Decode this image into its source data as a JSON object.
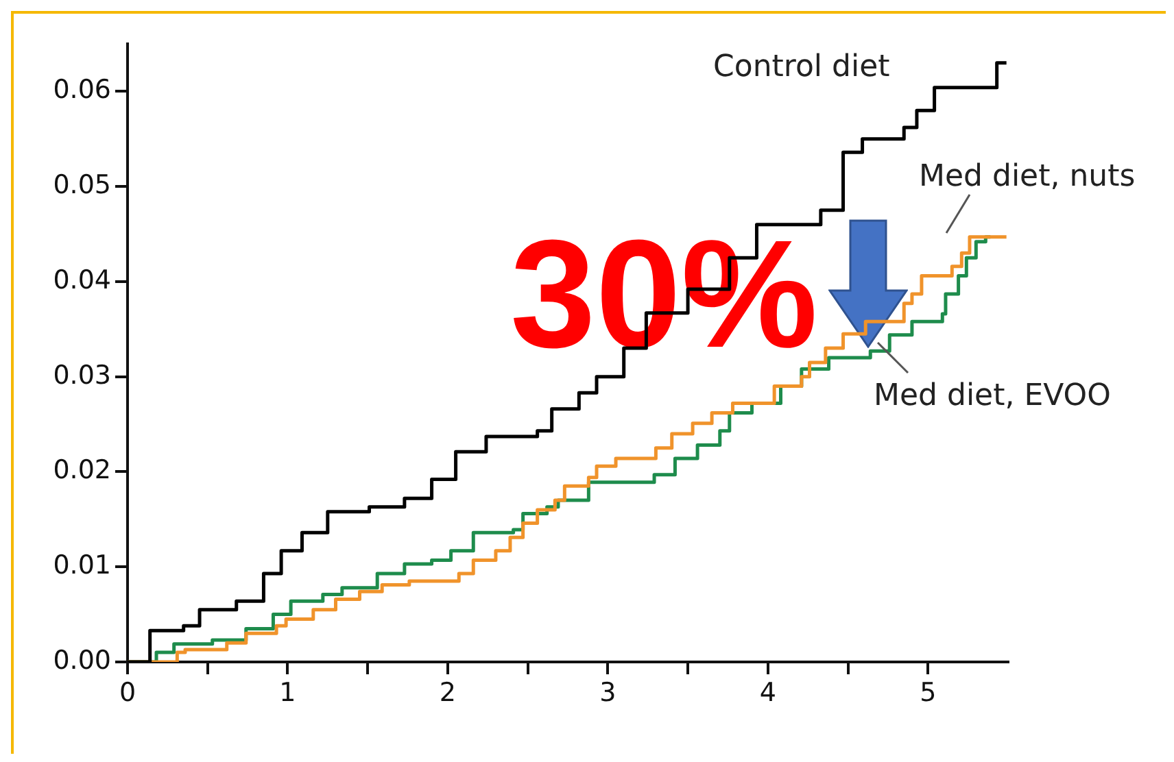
{
  "chart_data": {
    "type": "step",
    "annotations": [
      "30%"
    ],
    "xlim": [
      0,
      5.5
    ],
    "ylim": [
      0,
      0.065
    ],
    "xticks": [
      0,
      {
        "value": 0.5,
        "label": null
      },
      1,
      {
        "value": 1.5,
        "label": null
      },
      2,
      {
        "value": 2.5,
        "label": null
      },
      3,
      {
        "value": 3.5,
        "label": null
      },
      4,
      {
        "value": 4.5,
        "label": null
      },
      5
    ],
    "yticks": [
      {
        "value": 0,
        "label": "0.00"
      },
      0.01,
      0.02,
      0.03,
      0.04,
      0.05,
      0.06
    ],
    "grid": false,
    "legend": false,
    "series": [
      {
        "name": "Control diet",
        "color": "#000000",
        "x": [
          0,
          0.03,
          0.14,
          0.35,
          0.45,
          0.68,
          0.85,
          0.96,
          1.09,
          1.25,
          1.51,
          1.73,
          1.9,
          2.05,
          2.24,
          2.56,
          2.65,
          2.82,
          2.93,
          3.1,
          3.24,
          3.5,
          3.76,
          3.93,
          4.33,
          4.47,
          4.59,
          4.85,
          4.93,
          5.04,
          5.37,
          5.43,
          5.49
        ],
        "values": [
          0,
          0,
          0.0033,
          0.0038,
          0.0055,
          0.0064,
          0.0093,
          0.0117,
          0.0136,
          0.0158,
          0.0163,
          0.0172,
          0.0192,
          0.0221,
          0.0237,
          0.0243,
          0.0266,
          0.0283,
          0.03,
          0.033,
          0.0367,
          0.0392,
          0.0425,
          0.046,
          0.0475,
          0.0536,
          0.055,
          0.0562,
          0.058,
          0.0604,
          0.0604,
          0.063,
          0.063
        ]
      },
      {
        "name": "Med diet, nuts",
        "color": "#f0932b",
        "x": [
          0,
          0.31,
          0.36,
          0.62,
          0.74,
          0.93,
          0.99,
          1.16,
          1.3,
          1.45,
          1.59,
          1.76,
          2.07,
          2.16,
          2.3,
          2.39,
          2.47,
          2.56,
          2.67,
          2.73,
          2.88,
          2.93,
          3.05,
          3.3,
          3.4,
          3.53,
          3.65,
          3.78,
          4.04,
          4.21,
          4.26,
          4.36,
          4.47,
          4.61,
          4.85,
          4.9,
          4.96,
          5.15,
          5.21,
          5.26,
          5.49
        ],
        "values": [
          0,
          0.001,
          0.0013,
          0.002,
          0.003,
          0.0038,
          0.0045,
          0.0055,
          0.0066,
          0.0074,
          0.0081,
          0.0085,
          0.0093,
          0.0107,
          0.0117,
          0.0131,
          0.0146,
          0.016,
          0.017,
          0.0185,
          0.0194,
          0.0206,
          0.0214,
          0.0225,
          0.024,
          0.0251,
          0.0262,
          0.0272,
          0.029,
          0.03,
          0.0315,
          0.033,
          0.0345,
          0.0358,
          0.0377,
          0.0387,
          0.0406,
          0.0416,
          0.043,
          0.0447,
          0.0447
        ]
      },
      {
        "name": "Med diet, EVOO",
        "color": "#1e8c4c",
        "x": [
          0,
          0.18,
          0.29,
          0.53,
          0.74,
          0.91,
          1.02,
          1.22,
          1.34,
          1.56,
          1.73,
          1.9,
          2.02,
          2.16,
          2.41,
          2.47,
          2.62,
          2.69,
          2.88,
          3.29,
          3.42,
          3.56,
          3.7,
          3.76,
          3.9,
          4.08,
          4.21,
          4.38,
          4.64,
          4.76,
          4.9,
          5.09,
          5.11,
          5.19,
          5.24,
          5.3,
          5.36,
          5.39
        ],
        "values": [
          0,
          0.001,
          0.0019,
          0.0023,
          0.0035,
          0.005,
          0.0064,
          0.0071,
          0.0078,
          0.0093,
          0.0103,
          0.0107,
          0.0117,
          0.0136,
          0.0139,
          0.0156,
          0.0163,
          0.017,
          0.0189,
          0.0197,
          0.0214,
          0.0228,
          0.0243,
          0.0262,
          0.0272,
          0.029,
          0.0308,
          0.032,
          0.0327,
          0.0344,
          0.0358,
          0.0366,
          0.0387,
          0.0406,
          0.0425,
          0.0442,
          0.0447,
          0.0447
        ]
      }
    ]
  }
}
